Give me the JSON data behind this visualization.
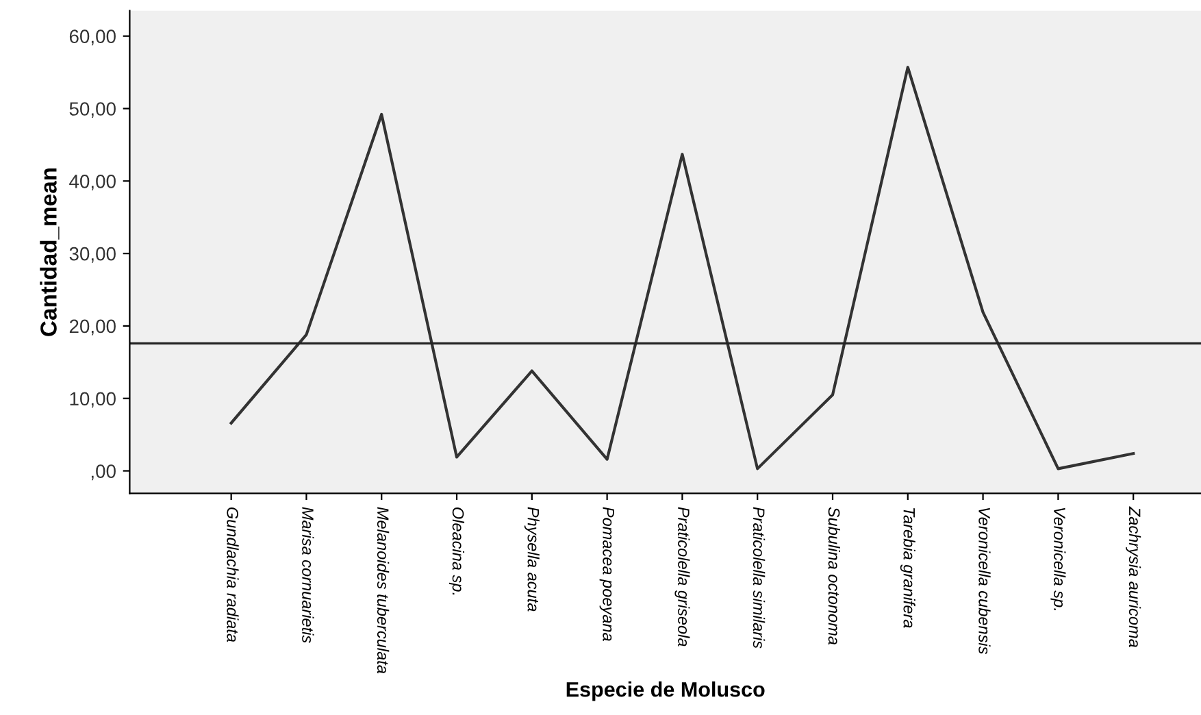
{
  "chart_data": {
    "type": "line",
    "xlabel": "Especie de Molusco",
    "ylabel": "Cantidad_mean",
    "categories": [
      "Gundlachia radiata",
      "Marisa cornuarietis",
      "Melanoides tuberculata",
      "Oleacina sp.",
      "Physella acuta",
      "Pomacea poeyana",
      "Praticolella griseola",
      "Praticolella similaris",
      "Subulina octonoma",
      "Tarebia granifera",
      "Veronicella cubensis",
      "Veronicella sp.",
      "Zachrysia auricoma"
    ],
    "series": [
      {
        "color": "#333333",
        "values": [
          6.6,
          18.8,
          49.2,
          1.9,
          13.8,
          1.6,
          43.7,
          0.3,
          10.5,
          55.7,
          21.9,
          0.3,
          2.4
        ]
      }
    ],
    "ylim": [
      -3.1,
      63.5
    ],
    "yticks": [
      {
        "value": 0,
        "label": ",00"
      },
      {
        "value": 10,
        "label": "10,00"
      },
      {
        "value": 20,
        "label": "20,00"
      },
      {
        "value": 30,
        "label": "30,00"
      },
      {
        "value": 40,
        "label": "40,00"
      },
      {
        "value": 50,
        "label": "50,00"
      },
      {
        "value": 60,
        "label": "60,00"
      }
    ],
    "ref_lines": [
      {
        "axis": "y",
        "value": 17.6,
        "color": "#222222"
      }
    ],
    "grid": false,
    "legend": false,
    "marker": "none",
    "line_style": "solid"
  }
}
